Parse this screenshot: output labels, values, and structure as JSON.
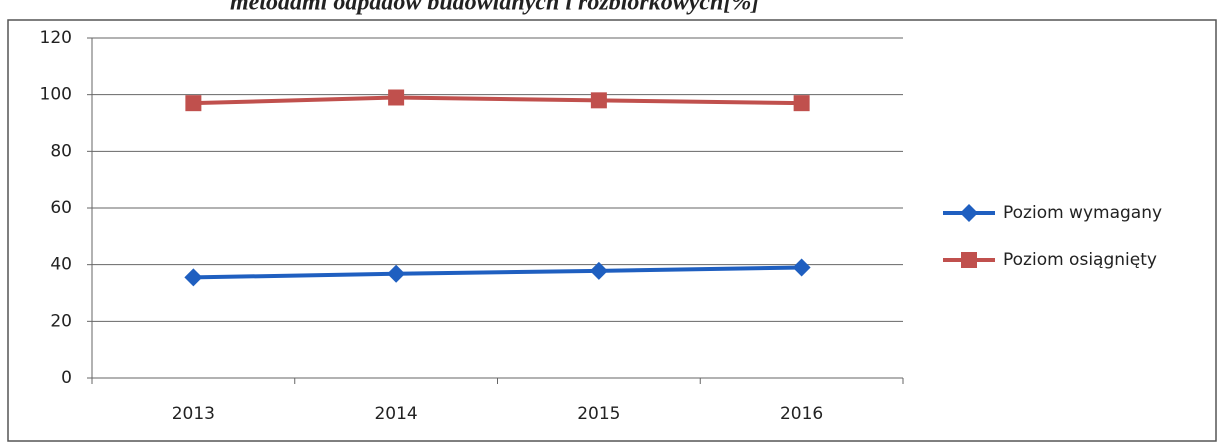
{
  "chart_data": {
    "type": "line",
    "title": "metodami odpadów budowlanych i rozbiórkowych[%]",
    "categories": [
      "2013",
      "2014",
      "2015",
      "2016"
    ],
    "series": [
      {
        "name": "Poziom wymagany",
        "color": "#1f5fc0",
        "marker": "diamond",
        "values": [
          35.5,
          36.8,
          37.8,
          39
        ]
      },
      {
        "name": "Poziom osiągnięty",
        "color": "#c0504d",
        "marker": "square",
        "values": [
          97,
          99,
          98,
          97
        ]
      }
    ],
    "ylim": [
      0,
      120
    ],
    "yticks": [
      0,
      20,
      40,
      60,
      80,
      100,
      120
    ],
    "grid": true,
    "legend": "right"
  }
}
